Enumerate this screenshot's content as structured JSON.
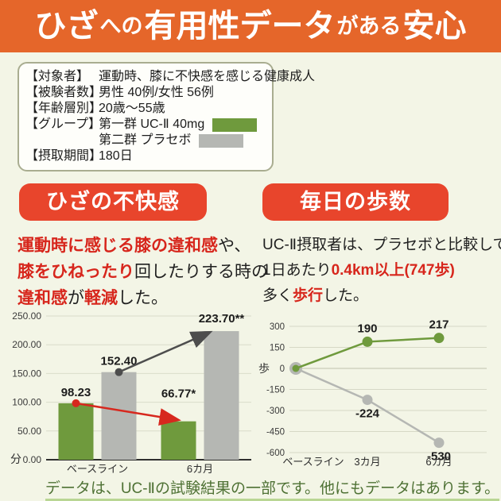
{
  "colors": {
    "banner_bg": "#e5662a",
    "badge_bg": "#e8452c",
    "red_text": "#d7261c",
    "ucii_green": "#6f9a3d",
    "placebo_gray": "#b5b7b3",
    "page_bg": "#f3f5e6",
    "caption_green": "#4e7134",
    "caption_underline": "#b9d694"
  },
  "banner": {
    "segments": [
      {
        "text": "ひざ",
        "size": "large"
      },
      {
        "text": "への",
        "size": "small"
      },
      {
        "text": "有用性データ",
        "size": "large"
      },
      {
        "text": "がある",
        "size": "small"
      },
      {
        "text": "安心",
        "size": "large"
      }
    ]
  },
  "study_info": {
    "rows": [
      {
        "label": "【対象者】",
        "value": "運動時、膝に不快感を感じる健康成人"
      },
      {
        "label": "【被験者数】",
        "value": "男性 40例/女性 56例"
      },
      {
        "label": "【年齢層別】",
        "value": "20歳〜55歳"
      },
      {
        "label": "【グループ】",
        "value": "第一群 UC-Ⅱ 40mg",
        "swatch": "ucii_green"
      },
      {
        "label": "",
        "value": "第二群 プラセボ",
        "swatch": "placebo_gray"
      },
      {
        "label": "【摂取期間】",
        "value": "180日"
      }
    ]
  },
  "knee_section": {
    "badge": "ひざの不快感",
    "lines": [
      {
        "segs": [
          {
            "t": "運動時に感じる膝の違和感",
            "red": true
          },
          {
            "t": "や、",
            "red": false
          }
        ]
      },
      {
        "segs": [
          {
            "t": "膝をひねったり",
            "red": true
          },
          {
            "t": "回したりする時の",
            "red": false
          }
        ]
      },
      {
        "segs": [
          {
            "t": "違和感",
            "red": true
          },
          {
            "t": "が",
            "red": false
          },
          {
            "t": "軽減",
            "red": true
          },
          {
            "t": "した。",
            "red": false
          }
        ]
      }
    ]
  },
  "steps_section": {
    "badge": "毎日の歩数",
    "lines": [
      {
        "segs": [
          {
            "t": "UC-Ⅱ摂取者は、プラセボと比較して",
            "red": false
          }
        ]
      },
      {
        "segs": [
          {
            "t": "1日あたり",
            "red": false
          },
          {
            "t": "0.4km以上(747歩)",
            "red": true
          }
        ]
      },
      {
        "segs": [
          {
            "t": "多く",
            "red": false
          },
          {
            "t": "歩行",
            "red": true
          },
          {
            "t": "した。",
            "red": false
          }
        ]
      }
    ]
  },
  "chart_data": [
    {
      "type": "bar",
      "title": "ひざの不快感",
      "categories": [
        "ベースライン",
        "6カ月"
      ],
      "ylabel": "分",
      "ylim": [
        0,
        250
      ],
      "yticks": [
        "250.00",
        "200.00",
        "150.00",
        "100.00",
        "50.00",
        "0.00"
      ],
      "grid": true,
      "series": [
        {
          "name": "UC-Ⅱ 40mg",
          "color": "#6f9a3d",
          "values": [
            98.23,
            66.77
          ],
          "labels": [
            "98.23",
            "66.77*"
          ],
          "label_dy": [
            -9,
            -30
          ]
        },
        {
          "name": "プラセボ",
          "color": "#b5b7b3",
          "values": [
            152.4,
            223.7
          ],
          "labels": [
            "152.40",
            "223.70**"
          ],
          "label_dy": [
            -9,
            -11
          ]
        }
      ],
      "arrows": [
        {
          "series": 0,
          "color": "#d7281e"
        },
        {
          "series": 1,
          "color": "#4d4d4d"
        }
      ]
    },
    {
      "type": "line",
      "title": "毎日の歩数",
      "categories": [
        "ベースライン",
        "3カ月",
        "6カ月"
      ],
      "ylabel": "歩",
      "ylim": [
        -600,
        300
      ],
      "yticks": [
        "300",
        "150",
        "0",
        "-150",
        "-300",
        "-450",
        "-600"
      ],
      "grid": true,
      "series": [
        {
          "name": "UC-Ⅱ 40mg",
          "color": "#6f9a3d",
          "values": [
            0,
            190,
            217
          ],
          "labels": [
            "",
            "190",
            "217"
          ],
          "label_pos": "above"
        },
        {
          "name": "プラセボ",
          "color": "#b5b7b3",
          "values": [
            0,
            -224,
            -530
          ],
          "labels": [
            "",
            "-224",
            "-530"
          ],
          "label_pos": "below"
        }
      ]
    }
  ],
  "footer": {
    "text": "データは、UC-Ⅱの試験結果の一部です。他にもデータはあります。"
  }
}
